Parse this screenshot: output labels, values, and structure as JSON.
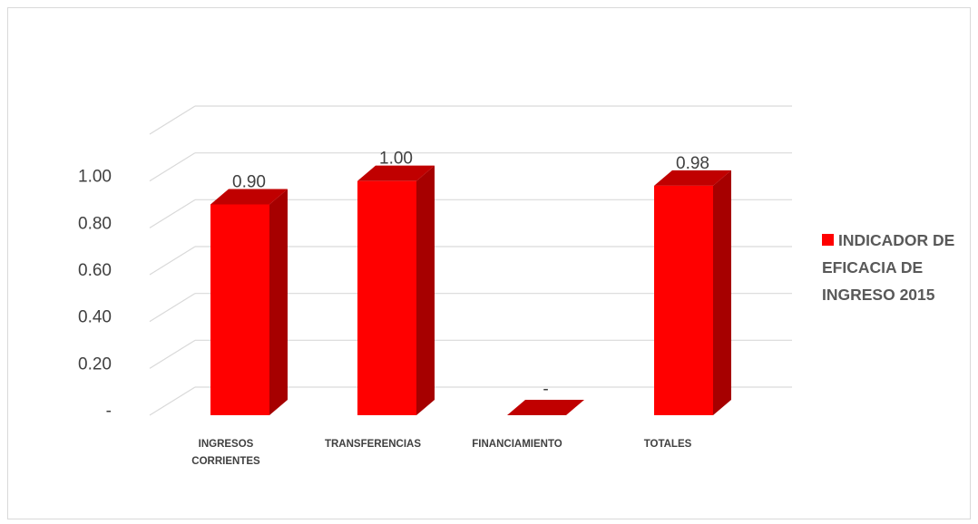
{
  "chart_data": {
    "type": "bar",
    "categories": [
      "INGRESOS CORRIENTES",
      "TRANSFERENCIAS",
      "FINANCIAMIENTO",
      "TOTALES"
    ],
    "category_lines": [
      [
        "INGRESOS",
        "CORRIENTES"
      ],
      [
        "TRANSFERENCIAS"
      ],
      [
        "FINANCIAMIENTO"
      ],
      [
        "TOTALES"
      ]
    ],
    "series": [
      {
        "name": "INDICADOR DE EFICACIA DE INGRESO 2015",
        "values": [
          0.9,
          1.0,
          0.0,
          0.98
        ]
      }
    ],
    "data_labels": [
      "0.90",
      "1.00",
      "-",
      "0.98"
    ],
    "y_ticks": [
      "-",
      "0.20",
      "0.40",
      "0.60",
      "0.80",
      "1.00"
    ],
    "ylim": [
      0,
      1.2
    ],
    "legend_position": "right",
    "legend_lines": [
      "INDICADOR DE",
      "EFICACIA DE",
      "INGRESO 2015"
    ],
    "colors": {
      "bar_front": "#ff0000",
      "bar_side": "#a60000",
      "bar_top": "#c00000",
      "grid": "#d9d9d9"
    }
  }
}
